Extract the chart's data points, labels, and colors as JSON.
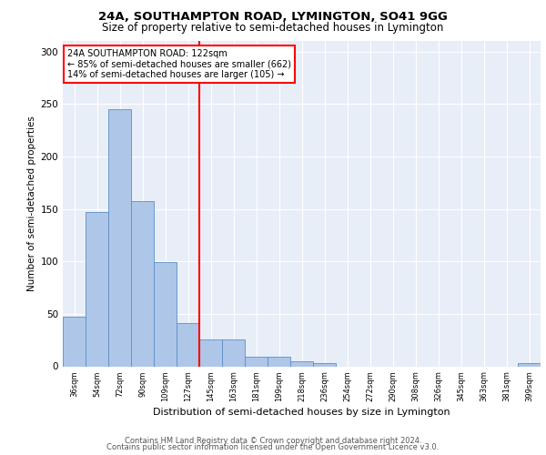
{
  "title1": "24A, SOUTHAMPTON ROAD, LYMINGTON, SO41 9GG",
  "title2": "Size of property relative to semi-detached houses in Lymington",
  "xlabel": "Distribution of semi-detached houses by size in Lymington",
  "ylabel": "Number of semi-detached properties",
  "categories": [
    "36sqm",
    "54sqm",
    "72sqm",
    "90sqm",
    "109sqm",
    "127sqm",
    "145sqm",
    "163sqm",
    "181sqm",
    "199sqm",
    "218sqm",
    "236sqm",
    "254sqm",
    "272sqm",
    "290sqm",
    "308sqm",
    "326sqm",
    "345sqm",
    "363sqm",
    "381sqm",
    "399sqm"
  ],
  "values": [
    47,
    147,
    245,
    157,
    99,
    41,
    26,
    26,
    9,
    9,
    5,
    3,
    0,
    0,
    0,
    0,
    0,
    0,
    0,
    0,
    3
  ],
  "bar_color": "#aec6e8",
  "bar_edge_color": "#5a8fc4",
  "background_color": "#e8eef8",
  "grid_color": "#ffffff",
  "property_line_x": 5.5,
  "property_line_color": "red",
  "annotation_text": "24A SOUTHAMPTON ROAD: 122sqm\n← 85% of semi-detached houses are smaller (662)\n14% of semi-detached houses are larger (105) →",
  "annotation_box_color": "white",
  "annotation_box_edge": "red",
  "ylim": [
    0,
    310
  ],
  "yticks": [
    0,
    50,
    100,
    150,
    200,
    250,
    300
  ],
  "footer1": "Contains HM Land Registry data © Crown copyright and database right 2024.",
  "footer2": "Contains public sector information licensed under the Open Government Licence v3.0."
}
